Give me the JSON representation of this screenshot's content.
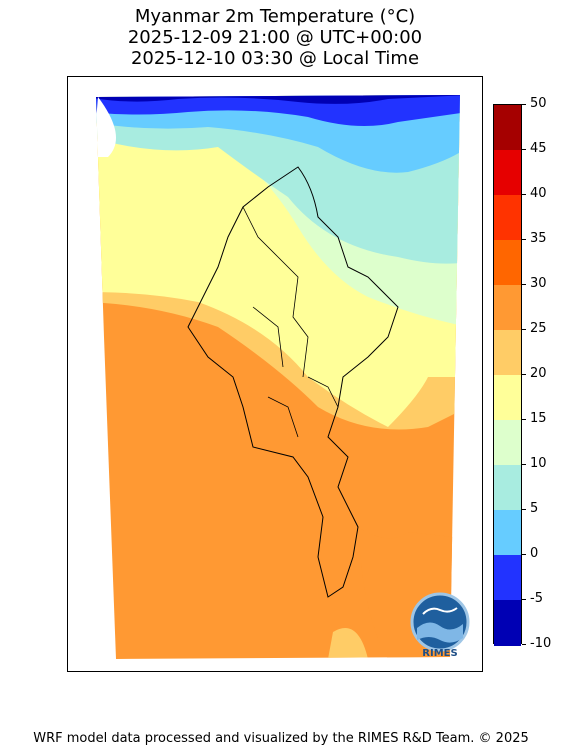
{
  "title": {
    "line1": "Myanmar 2m Temperature (°C)",
    "line2": "2025-12-09 21:00 @ UTC+00:00",
    "line3": "2025-12-10 03:30 @ Local Time"
  },
  "colorbar": {
    "ticks": [
      "50",
      "45",
      "40",
      "35",
      "30",
      "25",
      "20",
      "15",
      "10",
      "5",
      "0",
      "-5",
      "-10"
    ],
    "bins": [
      {
        "min": 45,
        "max": 50,
        "color": "#a50000"
      },
      {
        "min": 40,
        "max": 45,
        "color": "#e60000"
      },
      {
        "min": 35,
        "max": 40,
        "color": "#ff3300"
      },
      {
        "min": 30,
        "max": 35,
        "color": "#ff6600"
      },
      {
        "min": 25,
        "max": 30,
        "color": "#ff9933"
      },
      {
        "min": 20,
        "max": 25,
        "color": "#ffcc66"
      },
      {
        "min": 15,
        "max": 20,
        "color": "#ffff99"
      },
      {
        "min": 10,
        "max": 15,
        "color": "#ddffcc"
      },
      {
        "min": 5,
        "max": 10,
        "color": "#a8ece0"
      },
      {
        "min": 0,
        "max": 5,
        "color": "#66ccff"
      },
      {
        "min": -5,
        "max": 0,
        "color": "#2233ff"
      },
      {
        "min": -10,
        "max": -5,
        "color": "#0000b4"
      }
    ]
  },
  "logo": {
    "text": "RIMES",
    "icon": "rimes-logo-icon"
  },
  "footer": "WRF model data processed and visualized by the RIMES R&D Team. © 2025"
}
